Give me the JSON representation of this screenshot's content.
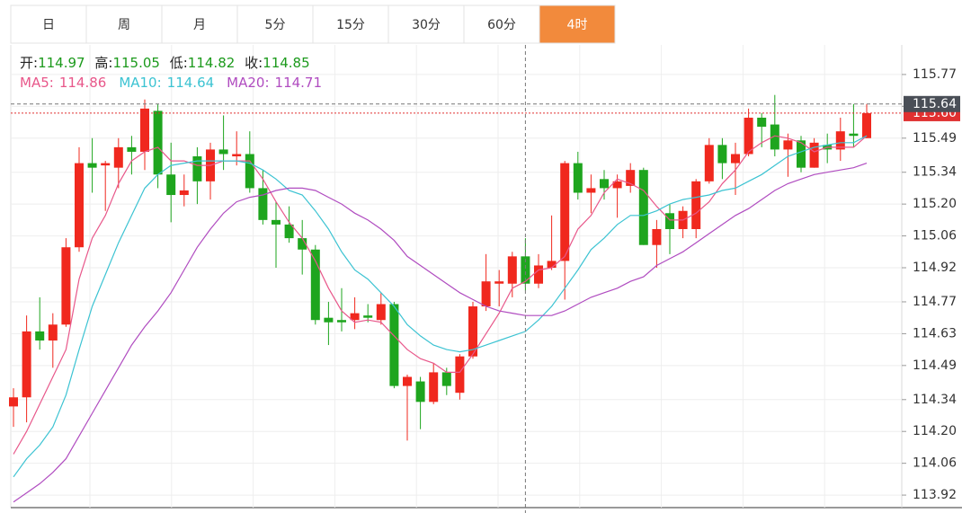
{
  "chart_data": {
    "type": "candlestick",
    "tabs": [
      "日",
      "周",
      "月",
      "5分",
      "15分",
      "30分",
      "60分",
      "4时"
    ],
    "active_tab": "4时",
    "separator": ":",
    "info": [
      {
        "label": "开",
        "value": 114.97
      },
      {
        "label": "高",
        "value": 115.05
      },
      {
        "label": "低",
        "value": 114.82
      },
      {
        "label": "收",
        "value": 114.85
      }
    ],
    "up_color": "#f0281e",
    "down_color": "#1ea51e",
    "ohlc": {
      "open": [
        114.31,
        114.35,
        114.64,
        114.6,
        114.67,
        115.01,
        115.38,
        115.37,
        115.36,
        115.45,
        115.43,
        115.61,
        115.33,
        115.24,
        115.41,
        115.3,
        115.44,
        115.41,
        115.42,
        115.27,
        115.13,
        115.11,
        115.05,
        115.0,
        114.7,
        114.69,
        114.69,
        114.71,
        114.69,
        114.76,
        114.4,
        114.42,
        114.33,
        114.46,
        114.37,
        114.53,
        114.75,
        114.85,
        114.85,
        114.97,
        114.85,
        114.92,
        114.95,
        115.38,
        115.25,
        115.31,
        115.27,
        115.28,
        115.35,
        115.02,
        115.16,
        115.09,
        115.09,
        115.3,
        115.46,
        115.38,
        115.42,
        115.58,
        115.55,
        115.44,
        115.48,
        115.36,
        115.46,
        115.44,
        115.51,
        115.49
      ],
      "high": [
        114.39,
        114.71,
        114.79,
        114.72,
        115.05,
        115.45,
        115.49,
        115.39,
        115.49,
        115.5,
        115.66,
        115.64,
        115.47,
        115.33,
        115.45,
        115.47,
        115.59,
        115.52,
        115.52,
        115.35,
        115.21,
        115.19,
        115.13,
        115.02,
        114.77,
        114.83,
        114.79,
        114.76,
        114.81,
        114.77,
        114.45,
        114.44,
        114.5,
        114.48,
        114.54,
        114.77,
        114.98,
        114.91,
        114.99,
        115.05,
        114.98,
        115.15,
        115.39,
        115.43,
        115.33,
        115.35,
        115.33,
        115.38,
        115.36,
        115.13,
        115.2,
        115.19,
        115.31,
        115.49,
        115.49,
        115.47,
        115.62,
        115.6,
        115.68,
        115.51,
        115.5,
        115.49,
        115.51,
        115.58,
        115.64,
        115.64
      ],
      "low": [
        114.22,
        114.24,
        114.56,
        114.48,
        114.66,
        114.99,
        115.25,
        115.17,
        115.27,
        115.33,
        115.35,
        115.27,
        115.12,
        115.19,
        115.2,
        115.22,
        115.35,
        115.37,
        115.25,
        115.11,
        114.92,
        115.03,
        114.89,
        114.67,
        114.58,
        114.64,
        114.65,
        114.68,
        114.67,
        114.39,
        114.16,
        114.21,
        114.32,
        114.36,
        114.34,
        114.52,
        114.73,
        114.75,
        114.79,
        114.82,
        114.83,
        114.91,
        114.78,
        115.22,
        115.16,
        115.22,
        115.14,
        115.25,
        115.02,
        114.92,
        114.98,
        115.05,
        115.05,
        115.29,
        115.31,
        115.24,
        115.41,
        115.45,
        115.41,
        115.32,
        115.34,
        115.36,
        115.38,
        115.39,
        115.45,
        115.49
      ],
      "close": [
        114.35,
        114.64,
        114.6,
        114.67,
        115.01,
        115.38,
        115.36,
        115.38,
        115.45,
        115.43,
        115.62,
        115.33,
        115.24,
        115.26,
        115.3,
        115.44,
        115.42,
        115.42,
        115.27,
        115.13,
        115.11,
        115.05,
        115.0,
        114.69,
        114.68,
        114.68,
        114.72,
        114.7,
        114.76,
        114.4,
        114.44,
        114.33,
        114.46,
        114.4,
        114.53,
        114.75,
        114.86,
        114.86,
        114.97,
        114.85,
        114.93,
        114.95,
        115.38,
        115.25,
        115.27,
        115.27,
        115.3,
        115.35,
        115.02,
        115.09,
        115.09,
        115.17,
        115.3,
        115.46,
        115.38,
        115.42,
        115.58,
        115.54,
        115.44,
        115.48,
        115.36,
        115.47,
        115.44,
        115.52,
        115.5,
        115.6
      ]
    },
    "series": [
      {
        "name": "MA5",
        "color": "#e8578a",
        "legend_value": 114.86,
        "values": [
          114.1,
          114.2,
          114.32,
          114.44,
          114.56,
          114.87,
          115.05,
          115.15,
          115.29,
          115.39,
          115.43,
          115.45,
          115.39,
          115.39,
          115.37,
          115.37,
          115.39,
          115.39,
          115.39,
          115.31,
          115.21,
          115.12,
          115.05,
          114.95,
          114.83,
          114.73,
          114.68,
          114.69,
          114.68,
          114.62,
          114.56,
          114.52,
          114.5,
          114.46,
          114.46,
          114.54,
          114.63,
          114.72,
          114.83,
          114.86,
          114.91,
          114.92,
          114.97,
          115.09,
          115.15,
          115.25,
          115.31,
          115.29,
          115.26,
          115.19,
          115.13,
          115.13,
          115.16,
          115.21,
          115.29,
          115.35,
          115.43,
          115.47,
          115.5,
          115.49,
          115.47,
          115.43,
          115.45,
          115.45,
          115.45,
          115.5
        ]
      },
      {
        "name": "MA10",
        "color": "#3cc3d2",
        "legend_value": 114.64,
        "values": [
          114.0,
          114.08,
          114.14,
          114.22,
          114.36,
          114.56,
          114.75,
          114.89,
          115.03,
          115.15,
          115.27,
          115.33,
          115.37,
          115.38,
          115.39,
          115.39,
          115.39,
          115.39,
          115.38,
          115.35,
          115.31,
          115.26,
          115.24,
          115.17,
          115.09,
          114.99,
          114.91,
          114.87,
          114.81,
          114.75,
          114.67,
          114.62,
          114.58,
          114.56,
          114.55,
          114.56,
          114.58,
          114.6,
          114.62,
          114.64,
          114.69,
          114.75,
          114.83,
          114.91,
          115.0,
          115.05,
          115.11,
          115.15,
          115.15,
          115.17,
          115.2,
          115.22,
          115.23,
          115.24,
          115.26,
          115.27,
          115.3,
          115.33,
          115.37,
          115.41,
          115.43,
          115.45,
          115.46,
          115.47,
          115.47,
          115.5
        ]
      },
      {
        "name": "MA20",
        "color": "#b04cc0",
        "legend_value": 114.71,
        "values": [
          113.89,
          113.93,
          113.97,
          114.02,
          114.08,
          114.18,
          114.28,
          114.38,
          114.48,
          114.58,
          114.66,
          114.73,
          114.81,
          114.91,
          115.01,
          115.09,
          115.16,
          115.21,
          115.23,
          115.24,
          115.26,
          115.27,
          115.27,
          115.26,
          115.23,
          115.2,
          115.16,
          115.13,
          115.09,
          115.04,
          114.97,
          114.93,
          114.89,
          114.85,
          114.81,
          114.78,
          114.75,
          114.73,
          114.72,
          114.71,
          114.71,
          114.71,
          114.73,
          114.76,
          114.79,
          114.81,
          114.83,
          114.86,
          114.88,
          114.93,
          114.96,
          114.99,
          115.03,
          115.07,
          115.11,
          115.15,
          115.18,
          115.22,
          115.26,
          115.29,
          115.31,
          115.33,
          115.34,
          115.35,
          115.36,
          115.38
        ]
      }
    ],
    "ylim": [
      113.865,
      115.9
    ],
    "yticks": [
      113.92,
      114.06,
      {
        "value": 114.2,
        "label": "114.20"
      },
      114.34,
      114.49,
      114.63,
      114.77,
      114.92,
      115.06,
      {
        "value": 115.2,
        "label": "115.20"
      },
      115.34,
      115.49,
      115.63,
      115.77
    ],
    "grid": true,
    "crosshair_price": 115.64,
    "last_price": {
      "value": 115.6,
      "label": "115.60"
    }
  }
}
